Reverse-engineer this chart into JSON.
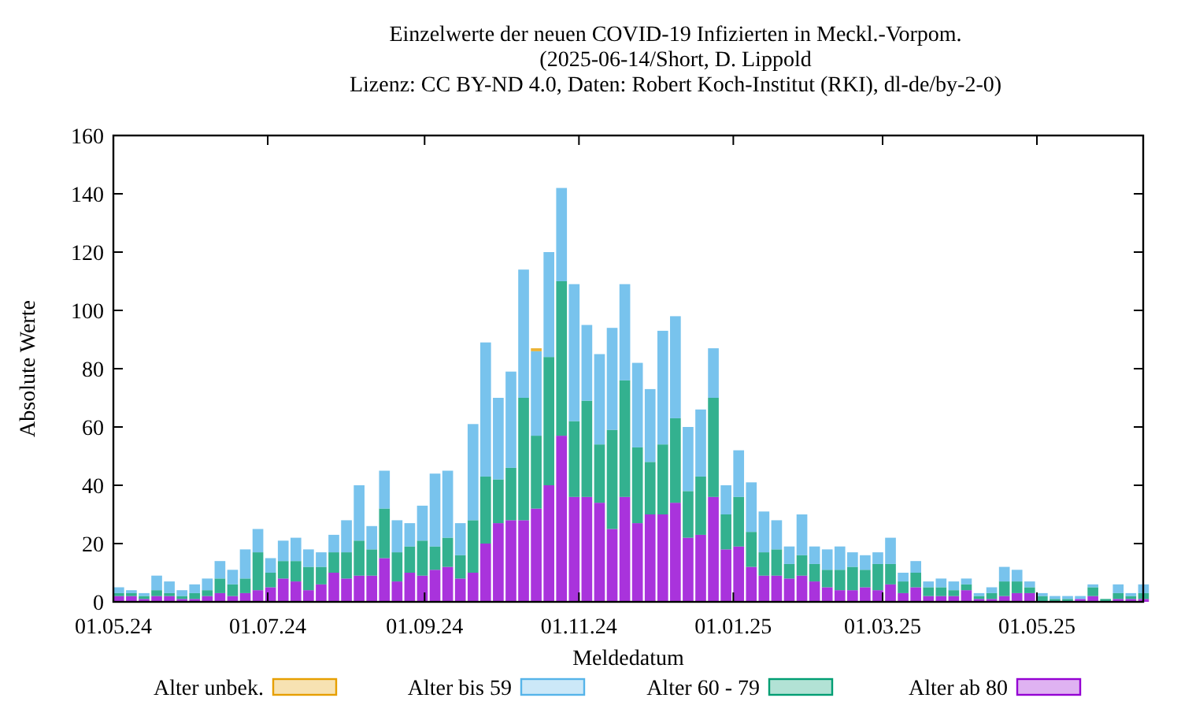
{
  "chart_data": {
    "type": "bar",
    "stacked": true,
    "title": "Einzelwerte der neuen COVID-19 Infizierten in Meckl.-Vorpom.",
    "subtitle": "(2025-06-14/Short, D. Lippold\nLizenz: CC BY-ND 4.0, Daten: Robert Koch-Institut (RKI), dl-de/by-2-0)",
    "xlabel": "Meldedatum",
    "ylabel": "Absolute Werte",
    "legend": "bottom",
    "grid": false,
    "x": [
      "2024-05-01",
      "2024-05-06",
      "2024-05-11",
      "2024-05-16",
      "2024-05-21",
      "2024-05-26",
      "2024-05-31",
      "2024-06-05",
      "2024-06-10",
      "2024-06-15",
      "2024-06-20",
      "2024-06-25",
      "2024-06-30",
      "2024-07-05",
      "2024-07-10",
      "2024-07-15",
      "2024-07-20",
      "2024-07-25",
      "2024-07-30",
      "2024-08-04",
      "2024-08-09",
      "2024-08-14",
      "2024-08-19",
      "2024-08-24",
      "2024-08-29",
      "2024-09-03",
      "2024-09-08",
      "2024-09-13",
      "2024-09-18",
      "2024-09-23",
      "2024-09-28",
      "2024-10-03",
      "2024-10-08",
      "2024-10-13",
      "2024-10-18",
      "2024-10-23",
      "2024-10-28",
      "2024-11-02",
      "2024-11-07",
      "2024-11-12",
      "2024-11-17",
      "2024-11-22",
      "2024-11-27",
      "2024-12-02",
      "2024-12-07",
      "2024-12-12",
      "2024-12-17",
      "2024-12-22",
      "2024-12-27",
      "2025-01-01",
      "2025-01-06",
      "2025-01-11",
      "2025-01-16",
      "2025-01-21",
      "2025-01-26",
      "2025-01-31",
      "2025-02-05",
      "2025-02-10",
      "2025-02-15",
      "2025-02-20",
      "2025-02-25",
      "2025-03-02",
      "2025-03-07",
      "2025-03-12",
      "2025-03-17",
      "2025-03-22",
      "2025-03-27",
      "2025-04-01",
      "2025-04-06",
      "2025-04-11",
      "2025-04-16",
      "2025-04-21",
      "2025-04-26",
      "2025-05-01",
      "2025-05-06",
      "2025-05-11",
      "2025-05-16",
      "2025-05-21",
      "2025-05-26",
      "2025-05-31",
      "2025-06-05",
      "2025-06-10"
    ],
    "series": [
      {
        "name": "Alter ab 80",
        "color": "#9400d3",
        "values": [
          2,
          2,
          1,
          2,
          2,
          1,
          1,
          2,
          3,
          2,
          3,
          4,
          5,
          8,
          7,
          4,
          6,
          10,
          8,
          9,
          9,
          15,
          7,
          10,
          9,
          11,
          12,
          8,
          10,
          20,
          27,
          28,
          28,
          32,
          40,
          57,
          36,
          36,
          34,
          25,
          36,
          27,
          30,
          30,
          34,
          22,
          23,
          36,
          18,
          19,
          12,
          9,
          9,
          8,
          9,
          7,
          5,
          4,
          4,
          5,
          4,
          6,
          3,
          5,
          2,
          2,
          2,
          4,
          1,
          1,
          2,
          3,
          3,
          0,
          0,
          0,
          1,
          2,
          0,
          1,
          1,
          1
        ]
      },
      {
        "name": "Alter 60 - 79",
        "color": "#009e73",
        "values": [
          1,
          1,
          1,
          2,
          1,
          1,
          2,
          2,
          5,
          4,
          5,
          13,
          5,
          6,
          7,
          8,
          6,
          7,
          9,
          12,
          9,
          17,
          10,
          9,
          12,
          8,
          10,
          8,
          18,
          23,
          15,
          18,
          42,
          25,
          44,
          53,
          26,
          33,
          20,
          34,
          40,
          26,
          18,
          24,
          29,
          16,
          20,
          34,
          12,
          17,
          12,
          8,
          9,
          5,
          7,
          6,
          6,
          7,
          8,
          6,
          9,
          7,
          4,
          5,
          3,
          3,
          2,
          2,
          1,
          2,
          5,
          4,
          2,
          2,
          1,
          1,
          0,
          3,
          1,
          2,
          1,
          2
        ]
      },
      {
        "name": "Alter bis 59",
        "color": "#56b4e9",
        "values": [
          2,
          1,
          1,
          5,
          4,
          2,
          3,
          4,
          6,
          5,
          10,
          8,
          5,
          7,
          8,
          6,
          5,
          6,
          11,
          19,
          8,
          13,
          11,
          8,
          12,
          25,
          23,
          11,
          33,
          46,
          28,
          33,
          44,
          29,
          36,
          32,
          47,
          26,
          31,
          35,
          33,
          29,
          25,
          39,
          35,
          22,
          23,
          17,
          10,
          16,
          17,
          14,
          10,
          6,
          14,
          6,
          7,
          8,
          5,
          5,
          4,
          9,
          3,
          4,
          2,
          3,
          3,
          2,
          1,
          2,
          5,
          4,
          2,
          1,
          1,
          1,
          1,
          1,
          0,
          3,
          1,
          3
        ]
      },
      {
        "name": "Alter unbek.",
        "color": "#e69f00",
        "values": [
          0,
          0,
          0,
          0,
          0,
          0,
          0,
          0,
          0,
          0,
          0,
          0,
          0,
          0,
          0,
          0,
          0,
          0,
          0,
          0,
          0,
          0,
          0,
          0,
          0,
          0,
          0,
          0,
          0,
          0,
          0,
          0,
          0,
          1,
          0,
          0,
          0,
          0,
          0,
          0,
          0,
          0,
          0,
          0,
          0,
          0,
          0,
          0,
          0,
          0,
          0,
          0,
          0,
          0,
          0,
          0,
          0,
          0,
          0,
          0,
          0,
          0,
          0,
          0,
          0,
          0,
          0,
          0,
          0,
          0,
          0,
          0,
          0,
          0,
          0,
          0,
          0,
          0,
          0,
          0,
          0,
          0
        ]
      }
    ],
    "xlim": [
      "2024-05-01",
      "2025-06-12"
    ],
    "xticks": [
      {
        "value": "2024-05-01",
        "label": "01.05.24"
      },
      {
        "value": "2024-07-01",
        "label": "01.07.24"
      },
      {
        "value": "2024-09-01",
        "label": "01.09.24"
      },
      {
        "value": "2024-11-01",
        "label": "01.11.24"
      },
      {
        "value": "2025-01-01",
        "label": "01.01.25"
      },
      {
        "value": "2025-03-01",
        "label": "01.03.25"
      },
      {
        "value": "2025-05-01",
        "label": "01.05.25"
      }
    ],
    "ylim": [
      0,
      160
    ],
    "yticks": [
      0,
      20,
      40,
      60,
      80,
      100,
      120,
      140,
      160
    ]
  }
}
